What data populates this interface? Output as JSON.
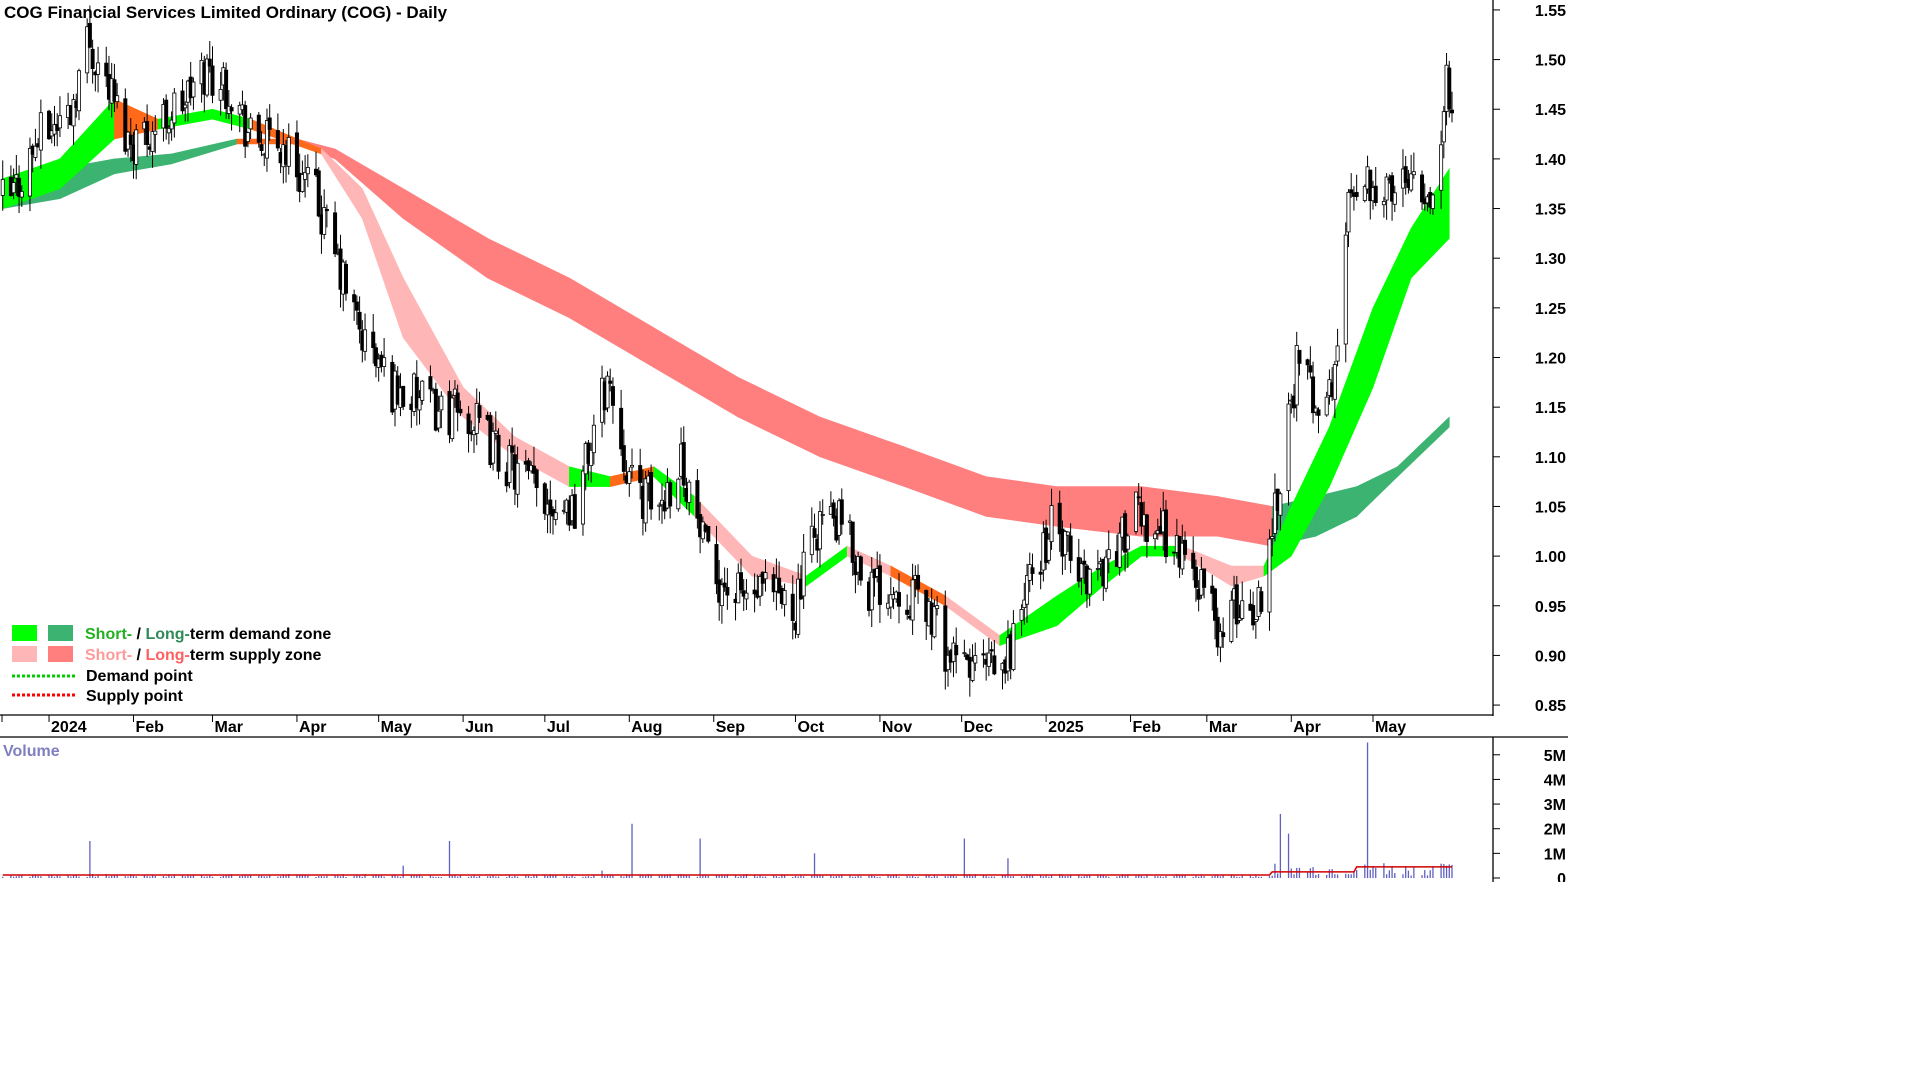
{
  "chart_data": {
    "type": "candlestick",
    "title": "COG Financial Services Limited Ordinary (COG) - Daily",
    "x_labels": [
      "2024",
      "Feb",
      "Mar",
      "Apr",
      "May",
      "Jun",
      "Jul",
      "Aug",
      "Sep",
      "Oct",
      "Nov",
      "Dec",
      "2025",
      "Feb",
      "Mar",
      "Apr",
      "May"
    ],
    "price_axis": {
      "ticks": [
        "1.55",
        "1.50",
        "1.45",
        "1.40",
        "1.35",
        "1.30",
        "1.25",
        "1.20",
        "1.15",
        "1.10",
        "1.05",
        "1.00",
        "0.95",
        "0.90",
        "0.85"
      ],
      "range": [
        0.84,
        1.56
      ]
    },
    "volume_axis": {
      "label": "Volume",
      "ticks": [
        "5M",
        "4M",
        "3M",
        "2M",
        "1M",
        "0"
      ],
      "range": [
        0,
        5.6
      ]
    },
    "price_anchors": [
      [
        "2023-12-18",
        1.36
      ],
      [
        "2023-12-28",
        1.42
      ],
      [
        "2024-01-09",
        1.45
      ],
      [
        "2024-01-15",
        1.52
      ],
      [
        "2024-01-22",
        1.48
      ],
      [
        "2024-01-30",
        1.42
      ],
      [
        "2024-02-08",
        1.43
      ],
      [
        "2024-02-20",
        1.46
      ],
      [
        "2024-02-28",
        1.49
      ],
      [
        "2024-03-08",
        1.47
      ],
      [
        "2024-03-15",
        1.42
      ],
      [
        "2024-03-28",
        1.41
      ],
      [
        "2024-04-08",
        1.36
      ],
      [
        "2024-04-15",
        1.3
      ],
      [
        "2024-04-25",
        1.22
      ],
      [
        "2024-05-06",
        1.17
      ],
      [
        "2024-05-20",
        1.15
      ],
      [
        "2024-06-03",
        1.14
      ],
      [
        "2024-06-18",
        1.09
      ],
      [
        "2024-07-01",
        1.06
      ],
      [
        "2024-07-12",
        1.05
      ],
      [
        "2024-07-24",
        1.18
      ],
      [
        "2024-08-02",
        1.07
      ],
      [
        "2024-08-12",
        1.05
      ],
      [
        "2024-08-20",
        1.1
      ],
      [
        "2024-08-30",
        0.99
      ],
      [
        "2024-09-09",
        0.96
      ],
      [
        "2024-09-20",
        0.96
      ],
      [
        "2024-10-01",
        0.95
      ],
      [
        "2024-10-10",
        1.04
      ],
      [
        "2024-10-18",
        1.03
      ],
      [
        "2024-10-28",
        0.97
      ],
      [
        "2024-11-08",
        0.97
      ],
      [
        "2024-11-18",
        0.95
      ],
      [
        "2024-11-28",
        0.89
      ],
      [
        "2024-12-06",
        0.89
      ],
      [
        "2024-12-16",
        0.88
      ],
      [
        "2024-12-24",
        0.96
      ],
      [
        "2025-01-03",
        1.03
      ],
      [
        "2025-01-13",
        0.98
      ],
      [
        "2025-01-22",
        0.99
      ],
      [
        "2025-02-03",
        1.04
      ],
      [
        "2025-02-12",
        1.03
      ],
      [
        "2025-02-20",
        1.0
      ],
      [
        "2025-02-28",
        0.97
      ],
      [
        "2025-03-06",
        0.92
      ],
      [
        "2025-03-12",
        0.95
      ],
      [
        "2025-03-20",
        0.95
      ],
      [
        "2025-03-27",
        1.07
      ],
      [
        "2025-04-03",
        1.19
      ],
      [
        "2025-04-10",
        1.16
      ],
      [
        "2025-04-16",
        1.16
      ],
      [
        "2025-04-23",
        1.38
      ],
      [
        "2025-05-01",
        1.38
      ],
      [
        "2025-05-08",
        1.36
      ],
      [
        "2025-05-15",
        1.4
      ],
      [
        "2025-05-22",
        1.36
      ],
      [
        "2025-05-28",
        1.47
      ]
    ],
    "short_term_band": [
      [
        "2023-12-15",
        1.38,
        1.35
      ],
      [
        "2024-01-05",
        1.4,
        1.37
      ],
      [
        "2024-01-25",
        1.46,
        1.42
      ],
      [
        "2024-02-10",
        1.44,
        1.43
      ],
      [
        "2024-03-01",
        1.45,
        1.44
      ],
      [
        "2024-03-15",
        1.44,
        1.43
      ],
      [
        "2024-04-10",
        1.41,
        1.405
      ],
      [
        "2024-04-25",
        1.37,
        1.34
      ],
      [
        "2024-05-10",
        1.28,
        1.22
      ],
      [
        "2024-06-01",
        1.17,
        1.14
      ],
      [
        "2024-06-20",
        1.12,
        1.1
      ],
      [
        "2024-07-10",
        1.09,
        1.07
      ],
      [
        "2024-07-25",
        1.08,
        1.07
      ],
      [
        "2024-08-10",
        1.09,
        1.08
      ],
      [
        "2024-08-25",
        1.06,
        1.04
      ],
      [
        "2024-09-15",
        1.0,
        0.98
      ],
      [
        "2024-10-05",
        0.98,
        0.97
      ],
      [
        "2024-10-20",
        1.01,
        1.0
      ],
      [
        "2024-11-05",
        0.99,
        0.98
      ],
      [
        "2024-11-25",
        0.96,
        0.95
      ],
      [
        "2024-12-15",
        0.92,
        0.91
      ],
      [
        "2025-01-05",
        0.96,
        0.93
      ],
      [
        "2025-01-22",
        0.99,
        0.97
      ],
      [
        "2025-02-05",
        1.01,
        1.0
      ],
      [
        "2025-02-20",
        1.01,
        1.0
      ],
      [
        "2025-03-10",
        0.99,
        0.97
      ],
      [
        "2025-03-22",
        0.99,
        0.98
      ],
      [
        "2025-04-01",
        1.05,
        1.0
      ],
      [
        "2025-04-15",
        1.13,
        1.07
      ],
      [
        "2025-05-01",
        1.25,
        1.17
      ],
      [
        "2025-05-15",
        1.33,
        1.28
      ],
      [
        "2025-05-29",
        1.39,
        1.32
      ]
    ],
    "long_term_band": [
      [
        "2023-12-15",
        1.38,
        1.35
      ],
      [
        "2024-01-05",
        1.39,
        1.36
      ],
      [
        "2024-01-25",
        1.4,
        1.385
      ],
      [
        "2024-02-15",
        1.405,
        1.395
      ],
      [
        "2024-03-10",
        1.42,
        1.415
      ],
      [
        "2024-04-01",
        1.42,
        1.415
      ],
      [
        "2024-04-15",
        1.41,
        1.4
      ],
      [
        "2024-05-10",
        1.37,
        1.34
      ],
      [
        "2024-06-10",
        1.32,
        1.28
      ],
      [
        "2024-07-10",
        1.28,
        1.24
      ],
      [
        "2024-08-10",
        1.23,
        1.19
      ],
      [
        "2024-09-10",
        1.18,
        1.14
      ],
      [
        "2024-10-10",
        1.14,
        1.1
      ],
      [
        "2024-11-10",
        1.11,
        1.07
      ],
      [
        "2024-12-10",
        1.08,
        1.04
      ],
      [
        "2025-01-05",
        1.07,
        1.03
      ],
      [
        "2025-02-05",
        1.07,
        1.02
      ],
      [
        "2025-03-05",
        1.06,
        1.02
      ],
      [
        "2025-03-25",
        1.05,
        1.01
      ],
      [
        "2025-04-10",
        1.06,
        1.02
      ],
      [
        "2025-04-25",
        1.07,
        1.04
      ],
      [
        "2025-05-10",
        1.09,
        1.08
      ],
      [
        "2025-05-29",
        1.14,
        1.13
      ]
    ],
    "volume_series": [
      [
        "2023-12-15",
        0.05
      ],
      [
        "2024-01-16",
        1.5
      ],
      [
        "2024-01-18",
        0.05
      ],
      [
        "2024-05-10",
        0.5
      ],
      [
        "2024-05-27",
        1.5
      ],
      [
        "2024-07-22",
        0.3
      ],
      [
        "2024-08-02",
        2.2
      ],
      [
        "2024-08-27",
        1.6
      ],
      [
        "2024-10-08",
        1.0
      ],
      [
        "2024-12-02",
        1.6
      ],
      [
        "2024-12-18",
        0.8
      ],
      [
        "2025-03-28",
        2.6
      ],
      [
        "2025-03-31",
        1.8
      ],
      [
        "2025-04-29",
        5.5
      ],
      [
        "2025-05-05",
        0.6
      ],
      [
        "2025-05-28",
        0.5
      ]
    ],
    "legend": [
      "Short-",
      " / ",
      "Long-",
      "term demand zone",
      "Short-",
      " / ",
      "Long-",
      "term supply zone",
      "Demand point",
      "Supply point"
    ],
    "colors": {
      "short_demand": "#00ff00",
      "long_demand": "#3cb371",
      "short_supply": "#ffb6b6",
      "long_supply": "#ff7f7f",
      "transition": "#ff6a1a",
      "demand_point": "#00cc00",
      "supply_point": "#ff0000",
      "volume_bar": "#6060c0",
      "volume_avg": "#d00000"
    },
    "grid": false
  }
}
